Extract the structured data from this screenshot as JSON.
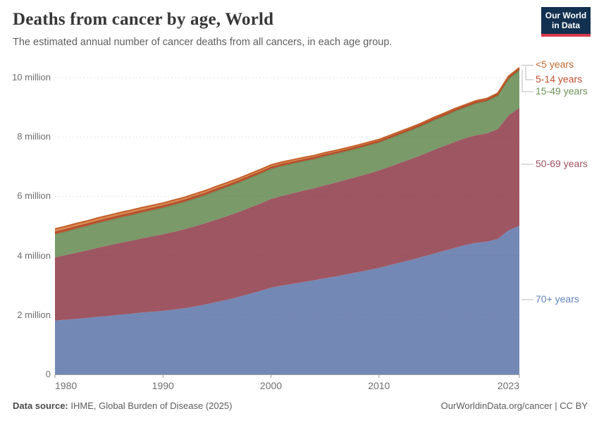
{
  "header": {
    "title": "Deaths from cancer by age, World",
    "subtitle": "The estimated annual number of cancer deaths from all cancers, in each age group.",
    "logo": {
      "line1": "Our World",
      "line2": "in Data",
      "bg_color": "#12304f",
      "accent_color": "#d8394c"
    }
  },
  "chart_data": {
    "type": "area",
    "stacked": true,
    "title": "Deaths from cancer by age, World",
    "units": "million deaths per year",
    "grid": "dashed-horizontal",
    "legend_position": "right",
    "x_range": [
      1980,
      2023
    ],
    "y_range": [
      0,
      10
    ],
    "xticks": [
      1980,
      1990,
      2000,
      2010,
      2023
    ],
    "yticks": [
      {
        "value": 0,
        "label": "0"
      },
      {
        "value": 2,
        "label": "2 million"
      },
      {
        "value": 4,
        "label": "4 million"
      },
      {
        "value": 6,
        "label": "6 million"
      },
      {
        "value": 8,
        "label": "8 million"
      },
      {
        "value": 10,
        "label": "10 million"
      }
    ],
    "x": [
      1980,
      1981,
      1982,
      1983,
      1984,
      1985,
      1986,
      1987,
      1988,
      1989,
      1990,
      1991,
      1992,
      1993,
      1994,
      1995,
      1996,
      1997,
      1998,
      1999,
      2000,
      2001,
      2002,
      2003,
      2004,
      2005,
      2006,
      2007,
      2008,
      2009,
      2010,
      2011,
      2012,
      2013,
      2014,
      2015,
      2016,
      2017,
      2018,
      2019,
      2020,
      2021,
      2022,
      2023
    ],
    "series": [
      {
        "id": "70-plus-years",
        "name": "70+ years",
        "fill": "#7488b5",
        "line": "",
        "values": [
          1.81,
          1.84,
          1.87,
          1.9,
          1.94,
          1.97,
          2.01,
          2.04,
          2.08,
          2.11,
          2.14,
          2.18,
          2.23,
          2.29,
          2.36,
          2.44,
          2.52,
          2.61,
          2.71,
          2.81,
          2.92,
          2.99,
          3.05,
          3.11,
          3.17,
          3.24,
          3.3,
          3.37,
          3.44,
          3.51,
          3.59,
          3.68,
          3.77,
          3.86,
          3.96,
          4.06,
          4.16,
          4.26,
          4.36,
          4.43,
          4.47,
          4.56,
          4.85,
          5.01
        ]
      },
      {
        "id": "50-69-years",
        "name": "50-69 years",
        "fill": "#9e5662",
        "line": "",
        "values": [
          2.13,
          2.18,
          2.23,
          2.28,
          2.33,
          2.38,
          2.42,
          2.46,
          2.5,
          2.54,
          2.58,
          2.62,
          2.66,
          2.7,
          2.74,
          2.78,
          2.82,
          2.86,
          2.9,
          2.94,
          2.99,
          3.02,
          3.05,
          3.08,
          3.1,
          3.13,
          3.16,
          3.19,
          3.22,
          3.25,
          3.28,
          3.32,
          3.36,
          3.4,
          3.44,
          3.49,
          3.53,
          3.57,
          3.6,
          3.63,
          3.65,
          3.7,
          3.88,
          3.97
        ]
      },
      {
        "id": "15-49-years",
        "name": "15-49 years",
        "fill": "#7a9a6a",
        "line": "#6f9059",
        "values": [
          0.77,
          0.78,
          0.8,
          0.81,
          0.82,
          0.83,
          0.84,
          0.85,
          0.86,
          0.87,
          0.88,
          0.9,
          0.91,
          0.93,
          0.94,
          0.96,
          0.97,
          0.98,
          0.99,
          1.0,
          1.0,
          1.0,
          0.99,
          0.98,
          0.97,
          0.97,
          0.96,
          0.95,
          0.94,
          0.94,
          0.93,
          0.94,
          0.95,
          0.96,
          0.97,
          0.99,
          1.0,
          1.02,
          1.03,
          1.06,
          1.08,
          1.12,
          1.22,
          1.26
        ]
      },
      {
        "id": "5-14-years",
        "name": "5-14 years",
        "fill": "#c3593c",
        "line": "#b04a28",
        "values": [
          0.075,
          0.074,
          0.073,
          0.072,
          0.072,
          0.071,
          0.07,
          0.07,
          0.069,
          0.068,
          0.068,
          0.067,
          0.066,
          0.066,
          0.065,
          0.064,
          0.063,
          0.062,
          0.062,
          0.061,
          0.06,
          0.059,
          0.058,
          0.058,
          0.057,
          0.056,
          0.055,
          0.054,
          0.054,
          0.053,
          0.052,
          0.052,
          0.051,
          0.051,
          0.05,
          0.05,
          0.05,
          0.049,
          0.049,
          0.049,
          0.048,
          0.048,
          0.048,
          0.048
        ]
      },
      {
        "id": "under-5-years",
        "name": "<5 years",
        "fill": "#d88a54",
        "line": "#c3602a",
        "values": [
          0.115,
          0.114,
          0.113,
          0.112,
          0.112,
          0.111,
          0.11,
          0.109,
          0.107,
          0.106,
          0.105,
          0.103,
          0.101,
          0.1,
          0.098,
          0.096,
          0.094,
          0.092,
          0.089,
          0.087,
          0.085,
          0.082,
          0.08,
          0.077,
          0.075,
          0.073,
          0.071,
          0.068,
          0.066,
          0.064,
          0.062,
          0.06,
          0.059,
          0.057,
          0.056,
          0.054,
          0.053,
          0.051,
          0.05,
          0.049,
          0.048,
          0.047,
          0.046,
          0.045
        ]
      }
    ],
    "legend": [
      {
        "label": "<5 years",
        "color": "#bf6a2f"
      },
      {
        "label": "5-14 years",
        "color": "#c04f31"
      },
      {
        "label": "15-49 years",
        "color": "#6e9257"
      },
      {
        "label": "50-69 years",
        "color": "#9d5161"
      },
      {
        "label": "70+ years",
        "color": "#6383bd"
      }
    ]
  },
  "footer": {
    "source_label": "Data source:",
    "source_value": "IHME, Global Burden of Disease (2025)",
    "credit": "OurWorldinData.org/cancer | CC BY"
  }
}
